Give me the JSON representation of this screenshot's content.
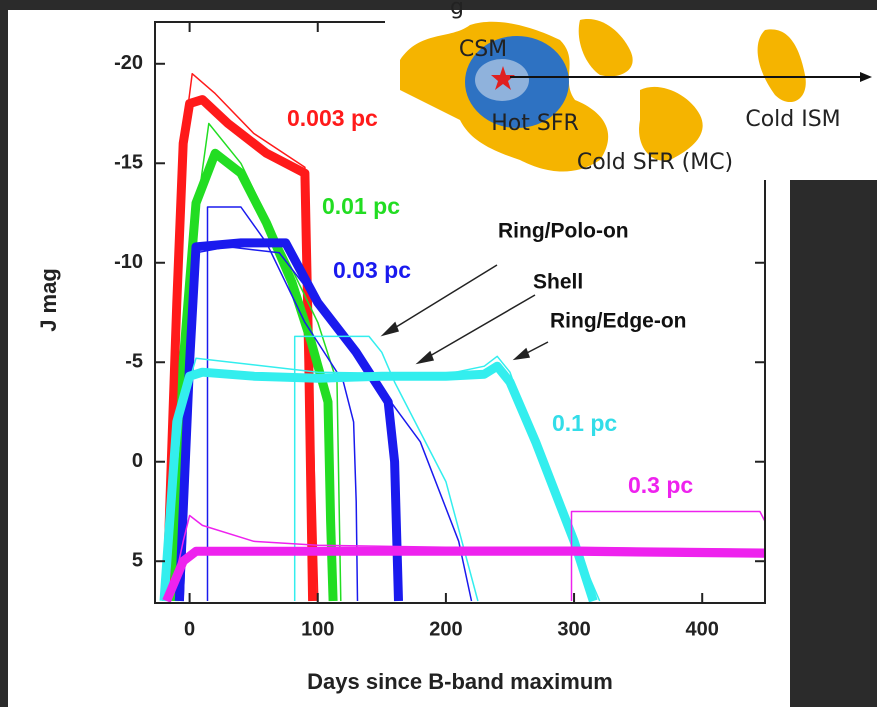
{
  "chart_data": {
    "type": "line",
    "xlabel": "Days since B-band maximum",
    "ylabel": "J mag",
    "xlim": [
      -27,
      449
    ],
    "ylim": [
      7.1,
      -22.1
    ],
    "xticks": [
      0,
      100,
      200,
      300,
      400
    ],
    "yticks": [
      -20,
      -15,
      -10,
      -5,
      0,
      5
    ],
    "series": [
      {
        "color": "#ff1a1a",
        "linewidth": 9,
        "x": [
          -18,
          -10,
          -5,
          0,
          10,
          30,
          60,
          90,
          93,
          96
        ],
        "values": [
          7,
          -8,
          -16,
          -18,
          -18.2,
          -17,
          -15.5,
          -14.5,
          -5,
          7
        ]
      },
      {
        "color": "#ff1a1a",
        "linewidth": 1.5,
        "x": [
          -15,
          -8,
          -3,
          2,
          20,
          50,
          90,
          95,
          100
        ],
        "values": [
          7,
          -8,
          -17,
          -19.5,
          -18.5,
          -16.5,
          -14.8,
          -5,
          7
        ]
      },
      {
        "color": "#22dd22",
        "linewidth": 9,
        "x": [
          -12,
          -5,
          5,
          20,
          40,
          60,
          80,
          95,
          108,
          110,
          112
        ],
        "values": [
          7,
          -5,
          -13,
          -15.5,
          -14.5,
          -12,
          -9,
          -6,
          -3,
          3,
          7
        ]
      },
      {
        "color": "#22dd22",
        "linewidth": 1.5,
        "x": [
          -10,
          0,
          15,
          40,
          70,
          100,
          115,
          118
        ],
        "values": [
          7,
          -10,
          -17,
          -15,
          -11,
          -7,
          -4,
          7
        ]
      },
      {
        "color": "#1a1aee",
        "linewidth": 9,
        "x": [
          -8,
          0,
          5,
          40,
          75,
          100,
          130,
          155,
          160,
          163
        ],
        "values": [
          7,
          -5,
          -10.8,
          -11,
          -11,
          -8,
          -5.5,
          -3,
          0,
          7
        ]
      },
      {
        "color": "#1a1aee",
        "linewidth": 1.5,
        "x": [
          14,
          14,
          40,
          60,
          90,
          120,
          128,
          130,
          131
        ],
        "values": [
          7,
          -12.8,
          -12.8,
          -11,
          -7,
          -4,
          -2,
          2,
          7
        ]
      },
      {
        "color": "#1a1aee",
        "linewidth": 1.5,
        "x": [
          -5,
          5,
          30,
          70,
          100,
          140,
          180,
          210,
          220
        ],
        "values": [
          7,
          -10.5,
          -10.8,
          -10.5,
          -8,
          -4.5,
          -1,
          4,
          7
        ]
      },
      {
        "color": "#33eeee",
        "linewidth": 9,
        "x": [
          -20,
          -10,
          0,
          10,
          50,
          100,
          150,
          200,
          230,
          240,
          250,
          270,
          300,
          315
        ],
        "values": [
          7,
          -2,
          -4.3,
          -4.5,
          -4.3,
          -4.2,
          -4.3,
          -4.3,
          -4.4,
          -4.8,
          -4,
          -1,
          4,
          7
        ]
      },
      {
        "color": "#33eeee",
        "linewidth": 1.5,
        "x": [
          82,
          82,
          85,
          140,
          150,
          160,
          200,
          225
        ],
        "values": [
          7,
          -6.3,
          -6.3,
          -6.3,
          -5.5,
          -4,
          1,
          7
        ]
      },
      {
        "color": "#33eeee",
        "linewidth": 1.5,
        "x": [
          -20,
          -5,
          5,
          100,
          200,
          230,
          240,
          250,
          280,
          320
        ],
        "values": [
          7,
          -3,
          -5.2,
          -4.5,
          -4.4,
          -4.8,
          -5.3,
          -4.5,
          1,
          7
        ]
      },
      {
        "color": "#ee22ee",
        "linewidth": 9,
        "x": [
          -18,
          -5,
          5,
          100,
          200,
          300,
          449
        ],
        "values": [
          7,
          5,
          4.5,
          4.5,
          4.5,
          4.5,
          4.6
        ]
      },
      {
        "color": "#ee22ee",
        "linewidth": 1.5,
        "x": [
          -15,
          -5,
          0,
          10,
          50,
          100,
          200,
          300,
          449
        ],
        "values": [
          7,
          4,
          2.7,
          3.2,
          4,
          4.2,
          4.3,
          4.3,
          4.4
        ]
      },
      {
        "color": "#ee22ee",
        "linewidth": 1.5,
        "x": [
          298,
          298,
          300,
          445,
          449
        ],
        "values": [
          7,
          2.5,
          2.5,
          2.5,
          3
        ]
      }
    ],
    "annotations": [
      {
        "text": "0.003 pc",
        "color": "#ff1a1a"
      },
      {
        "text": "0.01 pc",
        "color": "#22dd22"
      },
      {
        "text": "0.03 pc",
        "color": "#1a1aee"
      },
      {
        "text": "Ring/Polo-on",
        "color": "#111111"
      },
      {
        "text": "Shell",
        "color": "#111111"
      },
      {
        "text": "Ring/Edge-on",
        "color": "#111111"
      },
      {
        "text": "0.1 pc",
        "color": "#33dde8"
      },
      {
        "text": "0.3 pc",
        "color": "#ee22ee"
      }
    ]
  },
  "inset": {
    "labels": [
      "g",
      "CSM",
      "Hot SFR",
      "Cold SFR (MC)",
      "Cold ISM"
    ]
  }
}
